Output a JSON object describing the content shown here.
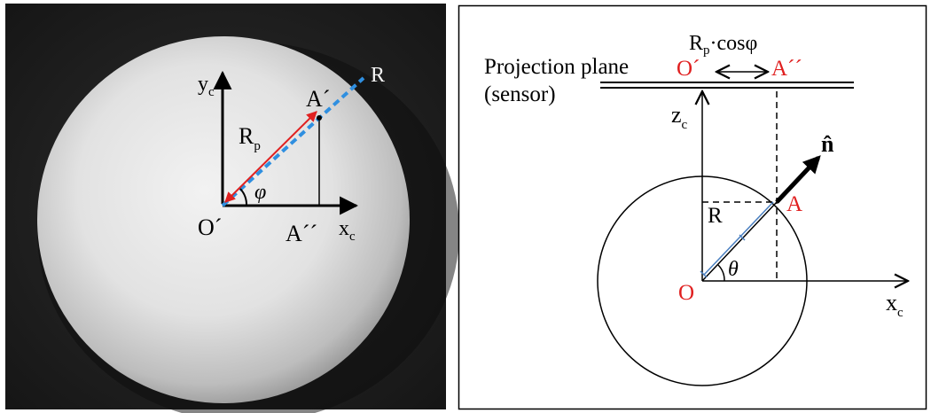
{
  "left_panel": {
    "labels": {
      "y_axis": "y",
      "y_axis_sub": "c",
      "x_axis": "x",
      "x_axis_sub": "c",
      "origin": "O´",
      "point_a": "A´",
      "point_a2": "A´´",
      "radius": "R",
      "radius_sub": "p",
      "angle": "φ",
      "sphere_radius": "R"
    }
  },
  "right_panel": {
    "labels": {
      "projection_plane": "Projection plane",
      "sensor": "(sensor)",
      "distance": "R",
      "distance_sub": "p",
      "distance_rest": "·cosφ",
      "origin_proj": "O´",
      "point_a2": "A´´",
      "z_axis": "z",
      "z_axis_sub": "c",
      "normal": "n̂",
      "point_a": "A",
      "radius": "R",
      "center": "O",
      "angle": "θ",
      "x_axis": "x",
      "x_axis_sub": "c"
    }
  },
  "colors": {
    "red": "#e02020",
    "blue": "#2f8fe0",
    "steel_blue": "#4a7fc0",
    "white_label": "#f4f4f4"
  }
}
